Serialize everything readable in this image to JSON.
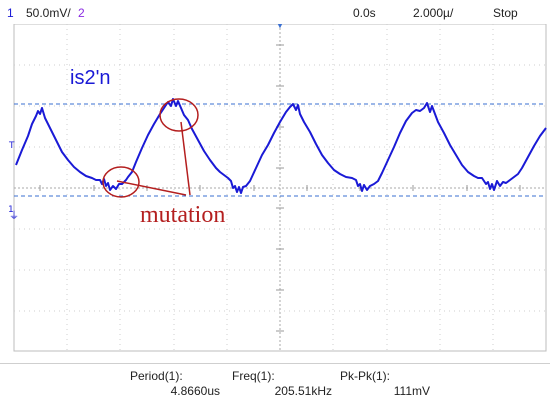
{
  "topbar": {
    "channel1_num": "1",
    "channel1_scale": "50.0mV/",
    "channel2_num": "2",
    "time_offset": "0.0s",
    "timebase": "2.000µ/",
    "run_state": "Stop"
  },
  "trace": {
    "label": "is2'n",
    "color": "#1a1ad6",
    "upper_cursor_color": "#3a6fd0",
    "lower_cursor_color": "#3a6fd0"
  },
  "markers": {
    "trigger_glyph": "T",
    "channel_ground_glyph": "1",
    "top_trigger_glyph": "▼"
  },
  "annotation": {
    "text": "mutation",
    "color": "#b41f1f"
  },
  "measurements": [
    {
      "label": "Period(1):",
      "value": "4.8660us"
    },
    {
      "label": "Freq(1):",
      "value": "205.51kHz"
    },
    {
      "label": "Pk-Pk(1):",
      "value": "111mV"
    }
  ],
  "colors": {
    "grid": "#bdbdbd",
    "grid_dash": "#c7c7c7",
    "channel1": "#1a1ad6",
    "channel2": "#8a2be2"
  }
}
